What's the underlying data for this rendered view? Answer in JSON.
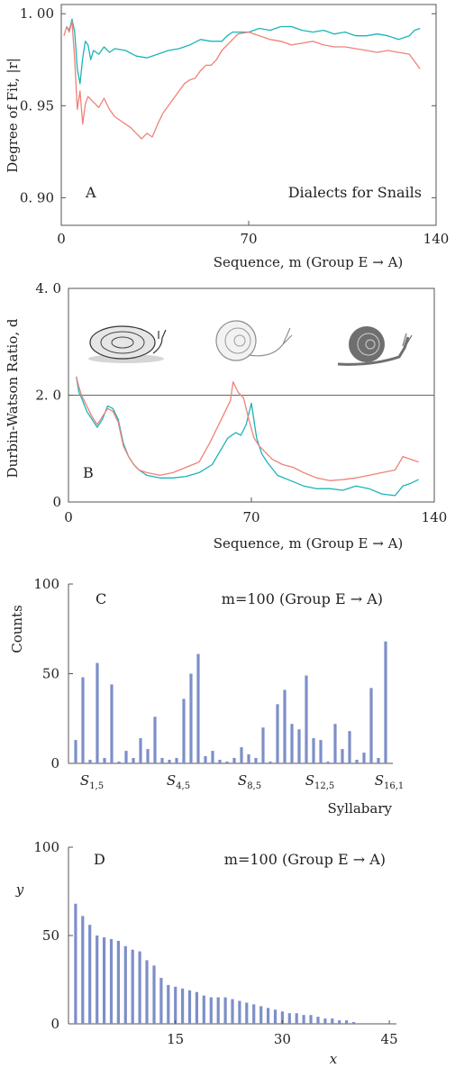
{
  "colors": {
    "series_cyan": "#1bb4b8",
    "series_red": "#ee8278",
    "bar": "#7d8fc8",
    "axis": "#555555",
    "snail_fill": "#6f6f6f"
  },
  "chart_data": [
    {
      "panel": "A",
      "type": "line",
      "panel_label": "A",
      "annotation": "Dialects for Snails",
      "ylabel": "Degree of Fit, |r|",
      "xlabel": "Sequence, m (Group E → A)",
      "xlim": [
        0,
        140
      ],
      "ylim": [
        0.885,
        1.005
      ],
      "xticks": [
        0,
        70,
        140
      ],
      "xtick_labels": [
        "0",
        "70",
        "140"
      ],
      "yticks": [
        0.9,
        0.95,
        1.0
      ],
      "ytick_labels": [
        "0. 90",
        "0. 95",
        "1. 00"
      ],
      "series": [
        {
          "color": "cyan",
          "x": [
            2,
            3,
            4,
            5,
            6,
            7,
            8,
            9,
            10,
            11,
            12,
            14,
            16,
            18,
            20,
            24,
            28,
            32,
            36,
            40,
            44,
            48,
            52,
            56,
            60,
            62,
            64,
            66,
            70,
            74,
            78,
            82,
            86,
            90,
            94,
            98,
            102,
            106,
            110,
            114,
            118,
            122,
            126,
            130,
            132,
            134
          ],
          "y": [
            0.993,
            0.991,
            0.997,
            0.99,
            0.97,
            0.962,
            0.976,
            0.985,
            0.983,
            0.975,
            0.98,
            0.978,
            0.982,
            0.979,
            0.981,
            0.98,
            0.977,
            0.976,
            0.978,
            0.98,
            0.981,
            0.983,
            0.986,
            0.985,
            0.985,
            0.988,
            0.99,
            0.99,
            0.99,
            0.992,
            0.991,
            0.993,
            0.993,
            0.991,
            0.99,
            0.991,
            0.989,
            0.99,
            0.988,
            0.988,
            0.989,
            0.988,
            0.986,
            0.988,
            0.991,
            0.992
          ]
        },
        {
          "color": "red",
          "x": [
            1,
            2,
            3,
            4,
            5,
            6,
            7,
            8,
            9,
            10,
            12,
            14,
            16,
            18,
            20,
            22,
            24,
            26,
            28,
            30,
            32,
            34,
            36,
            38,
            40,
            42,
            44,
            46,
            48,
            50,
            52,
            54,
            56,
            58,
            60,
            62,
            64,
            66,
            70,
            74,
            78,
            82,
            86,
            90,
            94,
            98,
            102,
            106,
            110,
            114,
            118,
            122,
            126,
            130,
            132,
            134
          ],
          "y": [
            0.988,
            0.993,
            0.99,
            0.996,
            0.975,
            0.948,
            0.958,
            0.94,
            0.951,
            0.955,
            0.952,
            0.949,
            0.954,
            0.948,
            0.944,
            0.942,
            0.94,
            0.938,
            0.935,
            0.932,
            0.935,
            0.933,
            0.94,
            0.946,
            0.95,
            0.954,
            0.958,
            0.962,
            0.964,
            0.965,
            0.969,
            0.972,
            0.972,
            0.975,
            0.98,
            0.983,
            0.986,
            0.989,
            0.99,
            0.988,
            0.986,
            0.985,
            0.983,
            0.984,
            0.985,
            0.983,
            0.982,
            0.982,
            0.981,
            0.98,
            0.979,
            0.98,
            0.979,
            0.978,
            0.974,
            0.97
          ]
        }
      ]
    },
    {
      "panel": "B",
      "type": "line",
      "panel_label": "B",
      "ylabel": "Durbin-Watson Ratio, d",
      "xlabel": "Sequence, m (Group E → A)",
      "xlim": [
        0,
        140
      ],
      "ylim": [
        0,
        4.0
      ],
      "xticks": [
        0,
        70,
        140
      ],
      "xtick_labels": [
        "0",
        "70",
        "140"
      ],
      "yticks": [
        0,
        2.0,
        4.0
      ],
      "ytick_labels": [
        "0",
        "2. 0",
        "4. 0"
      ],
      "reference_line_y": 2.0,
      "series": [
        {
          "color": "cyan",
          "x": [
            3,
            4,
            5,
            7,
            9,
            11,
            13,
            15,
            17,
            19,
            21,
            23,
            25,
            27,
            30,
            35,
            40,
            45,
            50,
            55,
            58,
            61,
            64,
            66,
            68,
            70,
            72,
            74,
            76,
            80,
            85,
            90,
            95,
            100,
            105,
            110,
            115,
            120,
            125,
            128,
            131,
            134
          ],
          "y": [
            2.35,
            2.05,
            1.95,
            1.7,
            1.55,
            1.4,
            1.55,
            1.8,
            1.75,
            1.55,
            1.1,
            0.85,
            0.7,
            0.6,
            0.5,
            0.45,
            0.45,
            0.48,
            0.55,
            0.7,
            0.95,
            1.2,
            1.3,
            1.25,
            1.45,
            1.85,
            1.2,
            0.9,
            0.75,
            0.5,
            0.4,
            0.3,
            0.25,
            0.25,
            0.22,
            0.3,
            0.25,
            0.15,
            0.12,
            0.3,
            0.35,
            0.42
          ]
        },
        {
          "color": "red",
          "x": [
            3,
            4,
            5,
            7,
            9,
            11,
            13,
            15,
            17,
            19,
            21,
            23,
            25,
            27,
            30,
            35,
            40,
            45,
            50,
            54,
            57,
            60,
            62,
            63,
            65,
            67,
            69,
            71,
            73,
            75,
            78,
            82,
            86,
            90,
            95,
            100,
            105,
            110,
            115,
            120,
            125,
            128,
            131,
            134
          ],
          "y": [
            2.35,
            2.15,
            2.0,
            1.8,
            1.6,
            1.45,
            1.6,
            1.75,
            1.7,
            1.5,
            1.05,
            0.85,
            0.7,
            0.6,
            0.55,
            0.5,
            0.55,
            0.65,
            0.75,
            1.1,
            1.4,
            1.7,
            1.9,
            2.25,
            2.05,
            1.95,
            1.55,
            1.2,
            1.05,
            0.95,
            0.8,
            0.7,
            0.65,
            0.55,
            0.45,
            0.4,
            0.42,
            0.45,
            0.5,
            0.55,
            0.6,
            0.85,
            0.8,
            0.75
          ]
        }
      ]
    },
    {
      "panel": "C",
      "type": "bar",
      "panel_label": "C",
      "annotation": "m=100 (Group E → A)",
      "ylabel": "Counts",
      "xlabel": "Syllabary",
      "ylim": [
        0,
        100
      ],
      "yticks": [
        0,
        50,
        100
      ],
      "xtick_labels": [
        "S1,5",
        "S4,5",
        "S8,5",
        "S12,5",
        "S16,1"
      ],
      "xtick_base": [
        "S",
        "S",
        "S",
        "S",
        "S"
      ],
      "xtick_sub": [
        "1,5",
        "4,5",
        "8,5",
        "12,5",
        "16,1"
      ],
      "values": [
        13,
        48,
        2,
        56,
        3,
        44,
        1,
        7,
        3,
        14,
        8,
        26,
        3,
        2,
        3,
        36,
        50,
        61,
        4,
        7,
        2,
        1,
        3,
        9,
        5,
        3,
        20,
        1,
        33,
        41,
        22,
        19,
        49,
        14,
        13,
        1,
        22,
        8,
        18,
        2,
        6,
        42,
        3,
        68
      ]
    },
    {
      "panel": "D",
      "type": "bar",
      "panel_label": "D",
      "annotation": "m=100 (Group E → A)",
      "ylabel": "y",
      "xlabel": "x",
      "ylim": [
        0,
        100
      ],
      "xlim": [
        0,
        46
      ],
      "yticks": [
        0,
        50,
        100
      ],
      "xticks": [
        15,
        30,
        45
      ],
      "xtick_labels": [
        "15",
        "30",
        "45"
      ],
      "x": [
        1,
        2,
        3,
        4,
        5,
        6,
        7,
        8,
        9,
        10,
        11,
        12,
        13,
        14,
        15,
        16,
        17,
        18,
        19,
        20,
        21,
        22,
        23,
        24,
        25,
        26,
        27,
        28,
        29,
        30,
        31,
        32,
        33,
        34,
        35,
        36,
        37,
        38,
        39,
        40
      ],
      "values": [
        68,
        61,
        56,
        50,
        49,
        48,
        47,
        44,
        42,
        41,
        36,
        33,
        26,
        22,
        21,
        20,
        19,
        18,
        16,
        15,
        15,
        15,
        14,
        13,
        12,
        11,
        10,
        9,
        8,
        7,
        6,
        6,
        5,
        5,
        4,
        3,
        3,
        2,
        2,
        1
      ]
    }
  ]
}
